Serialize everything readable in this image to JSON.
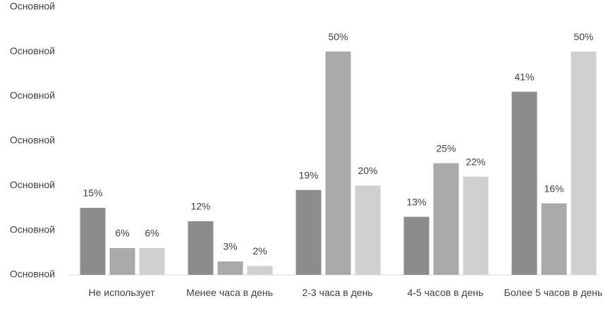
{
  "chart_data": {
    "type": "bar",
    "categories": [
      "Не использует",
      "Менее часа в день",
      "2-3 часа в день",
      "4-5 часов в день",
      "Более 5 часов в день"
    ],
    "series": [
      {
        "color": "#8c8c8c",
        "values": [
          15,
          12,
          19,
          13,
          41
        ],
        "value_labels": [
          "15%",
          "12%",
          "19%",
          "13%",
          "41%"
        ]
      },
      {
        "color": "#a9a9a9",
        "values": [
          6,
          3,
          50,
          25,
          16
        ],
        "value_labels": [
          "6%",
          "3%",
          "50%",
          "25%",
          "16%"
        ]
      },
      {
        "color": "#d0d0d0",
        "values": [
          6,
          2,
          20,
          22,
          50
        ],
        "value_labels": [
          "6%",
          "2%",
          "20%",
          "22%",
          "50%"
        ]
      }
    ],
    "ylim": [
      0,
      60
    ],
    "yticks": [
      {
        "value": 0,
        "label": "Основной"
      },
      {
        "value": 10,
        "label": "Основной"
      },
      {
        "value": 20,
        "label": "Основной"
      },
      {
        "value": 30,
        "label": "Основной"
      },
      {
        "value": 40,
        "label": "Основной"
      },
      {
        "value": 50,
        "label": "Основной"
      },
      {
        "value": 60,
        "label": "Основной"
      }
    ],
    "grid": false
  }
}
